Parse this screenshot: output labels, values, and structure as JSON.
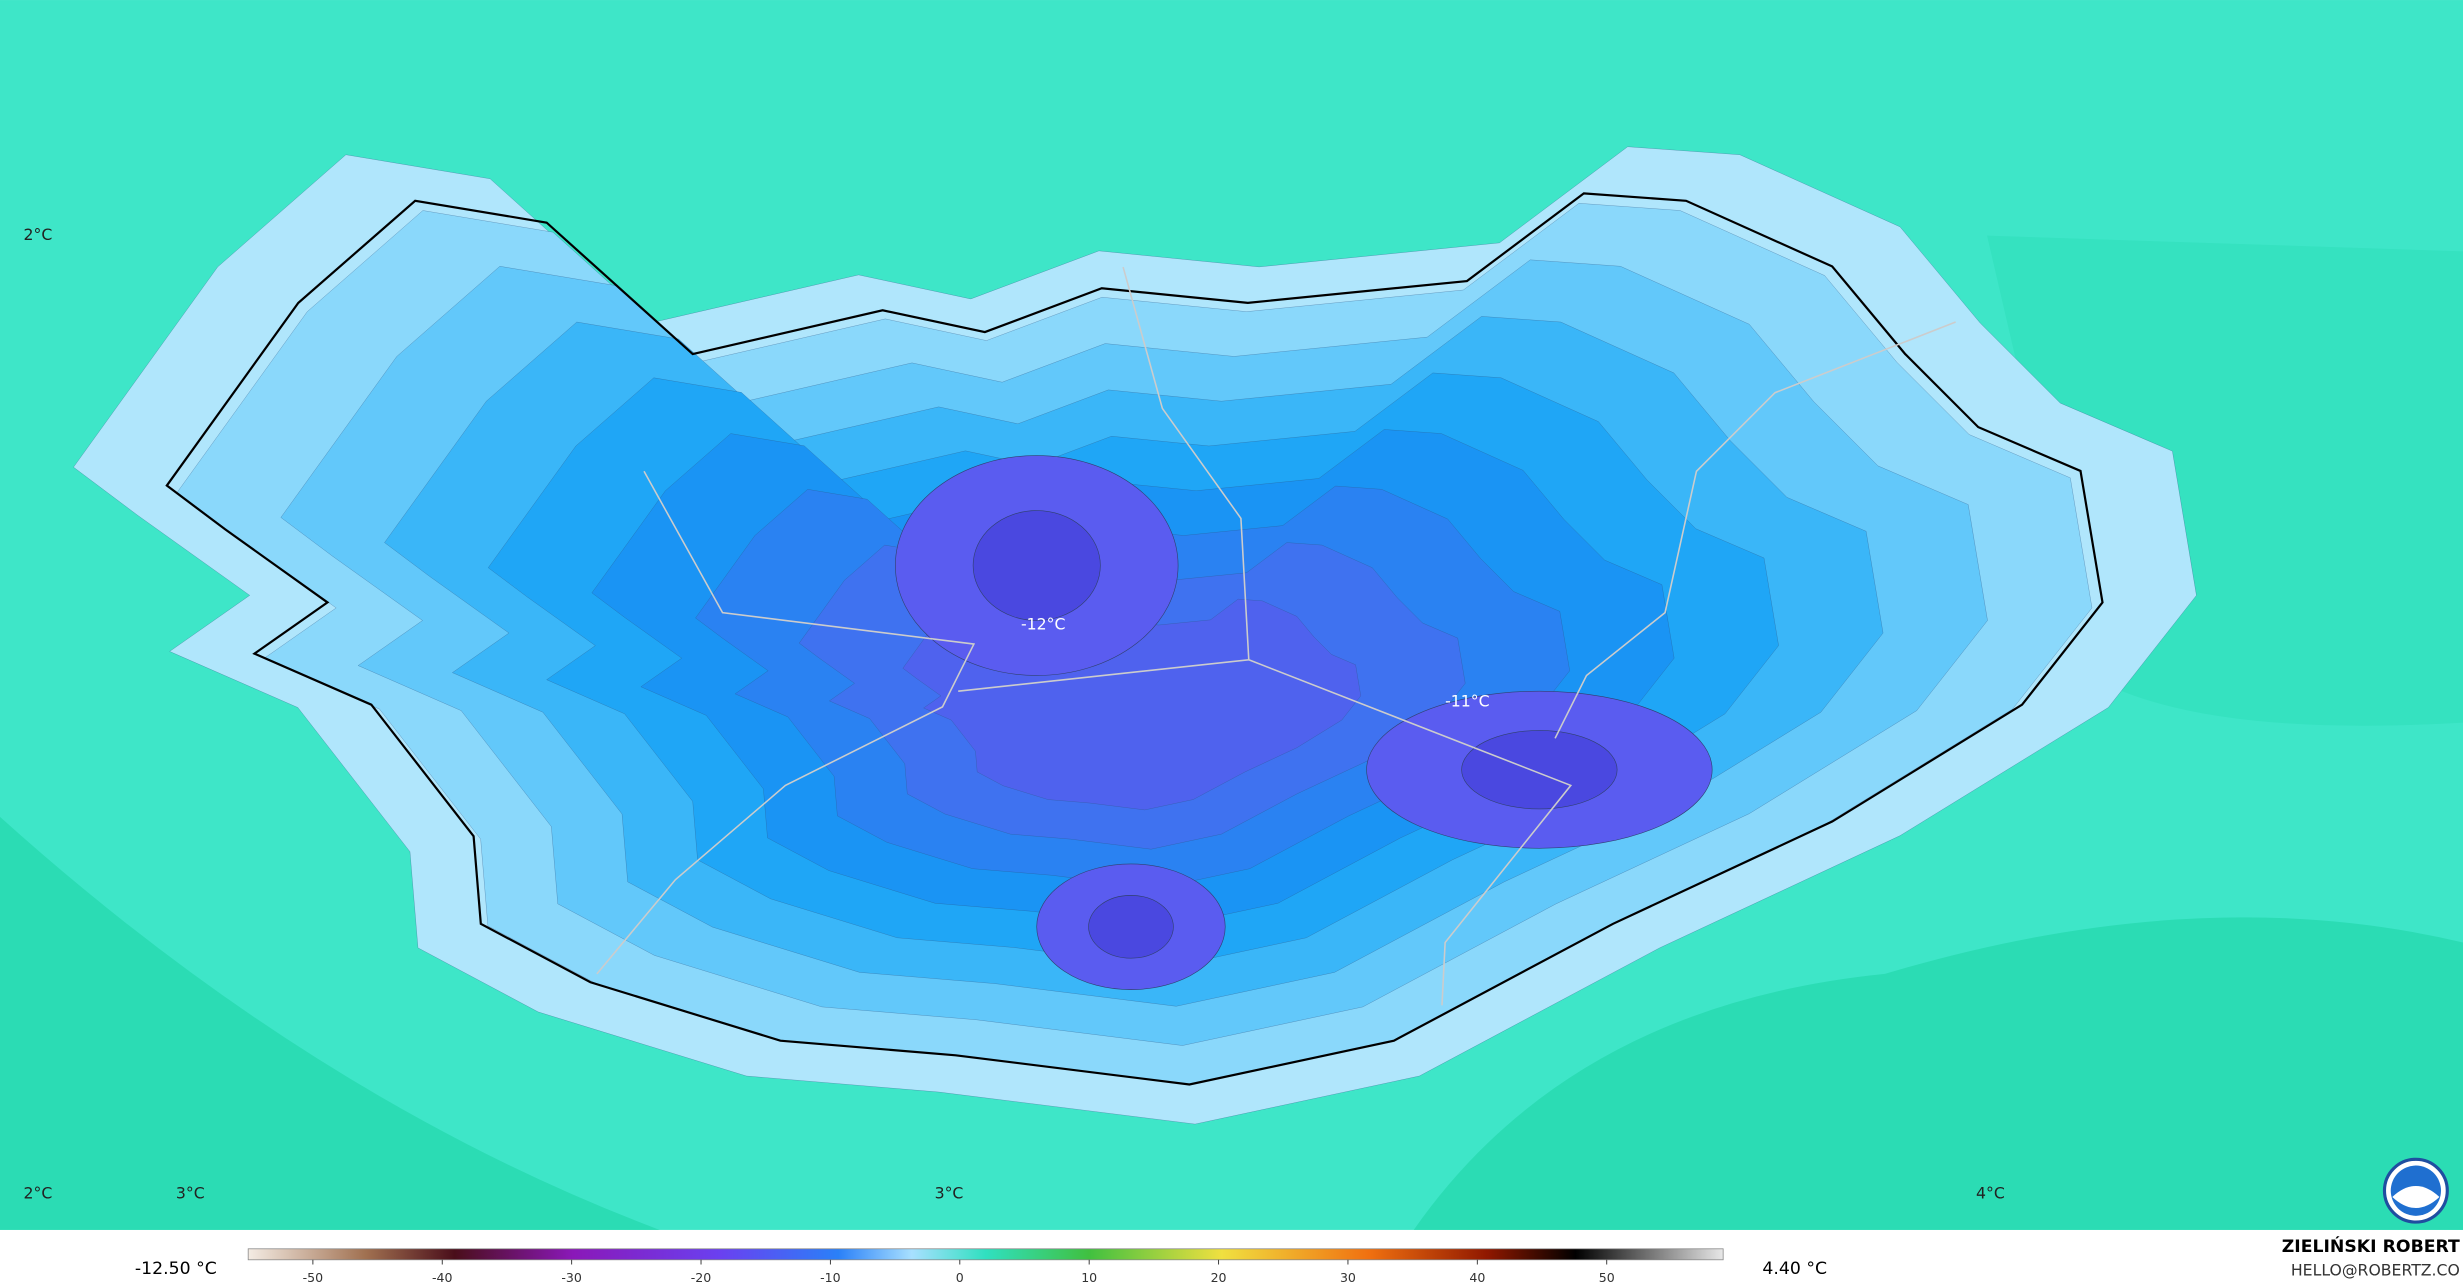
{
  "map": {
    "labels": [
      {
        "text": "2°C"
      },
      {
        "text": "2°C"
      },
      {
        "text": "3°C"
      },
      {
        "text": "3°C"
      },
      {
        "text": "4°C"
      },
      {
        "text": "-12°C"
      },
      {
        "text": "-11°C"
      }
    ]
  },
  "colorbar": {
    "min_label": "-12.50 °C",
    "max_label": "4.40 °C",
    "lim": [
      -55,
      59
    ],
    "ticks": [
      -50,
      -40,
      -30,
      -20,
      -10,
      0,
      10,
      20,
      30,
      40,
      50
    ]
  },
  "credit": {
    "author": "ZIELIŃSKI ROBERT",
    "email": "HELLO@ROBERTZ.CO"
  }
}
